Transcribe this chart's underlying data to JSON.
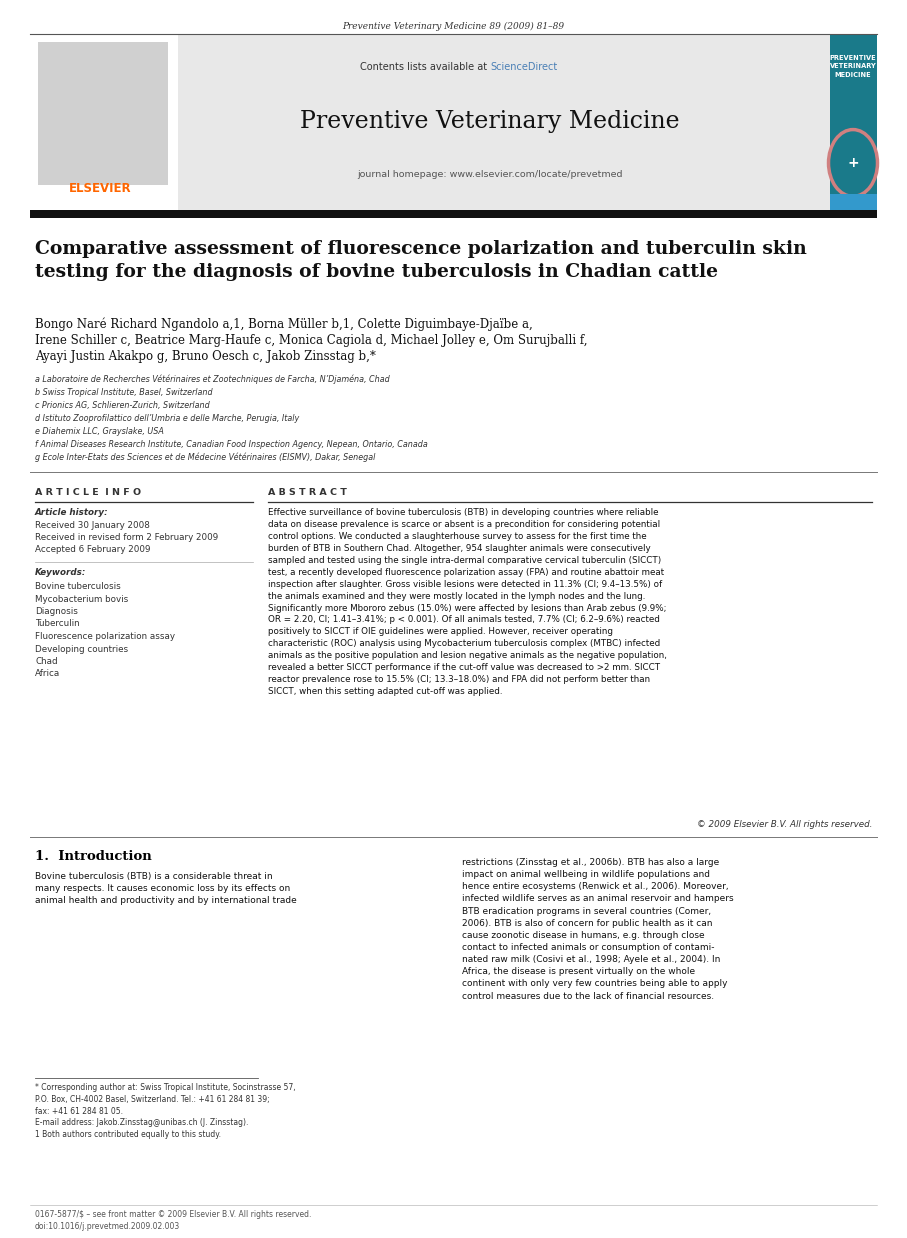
{
  "page_width": 9.07,
  "page_height": 12.38,
  "bg_color": "#ffffff",
  "journal_header_text": "Preventive Veterinary Medicine 89 (2009) 81–89",
  "sciencedirect_link_color": "#4a7fb5",
  "journal_name": "Preventive Veterinary Medicine",
  "journal_homepage": "journal homepage: www.elsevier.com/locate/prevetmed",
  "elsevier_color": "#ff6600",
  "header_bg_color": "#e8e8e8",
  "article_title": "Comparative assessment of fluorescence polarization and tuberculin skin\ntesting for the diagnosis of bovine tuberculosis in Chadian cattle",
  "authors_line1": "Bongo Naré Richard Ngandolo a,1, Borna Müller b,1, Colette Diguimbaye-Djaïbe a,",
  "authors_line2": "Irene Schiller c, Beatrice Marg-Haufe c, Monica Cagiola d, Michael Jolley e, Om Surujballi f,",
  "authors_line3": "Ayayi Justin Akakpo g, Bruno Oesch c, Jakob Zinsstag b,*",
  "affils": [
    "a Laboratoire de Recherches Vétérinaires et Zootechniques de Farcha, N’Djaména, Chad",
    "b Swiss Tropical Institute, Basel, Switzerland",
    "c Prionics AG, Schlieren-Zurich, Switzerland",
    "d Istituto Zooprofilattico dell’Umbria e delle Marche, Perugia, Italy",
    "e Diahemix LLC, Grayslake, USA",
    "f Animal Diseases Research Institute, Canadian Food Inspection Agency, Nepean, Ontario, Canada",
    "g Ecole Inter-Etats des Sciences et de Médecine Vétérinaires (EISMV), Dakar, Senegal"
  ],
  "article_info_title": "A R T I C L E  I N F O",
  "article_history_label": "Article history:",
  "received1": "Received 30 January 2008",
  "received2": "Received in revised form 2 February 2009",
  "accepted": "Accepted 6 February 2009",
  "keywords_label": "Keywords:",
  "keywords": [
    "Bovine tuberculosis",
    "Mycobacterium bovis",
    "Diagnosis",
    "Tuberculin",
    "Fluorescence polarization assay",
    "Developing countries",
    "Chad",
    "Africa"
  ],
  "abstract_title": "A B S T R A C T",
  "abstract_text": "Effective surveillance of bovine tuberculosis (BTB) in developing countries where reliable\ndata on disease prevalence is scarce or absent is a precondition for considering potential\ncontrol options. We conducted a slaughterhouse survey to assess for the first time the\nburden of BTB in Southern Chad. Altogether, 954 slaughter animals were consecutively\nsampled and tested using the single intra-dermal comparative cervical tuberculin (SICCT)\ntest, a recently developed fluorescence polarization assay (FPA) and routine abattoir meat\ninspection after slaughter. Gross visible lesions were detected in 11.3% (CI; 9.4–13.5%) of\nthe animals examined and they were mostly located in the lymph nodes and the lung.\nSignificantly more Mbororo zebus (15.0%) were affected by lesions than Arab zebus (9.9%;\nOR = 2.20, CI; 1.41–3.41%; p < 0.001). Of all animals tested, 7.7% (CI; 6.2–9.6%) reacted\npositively to SICCT if OIE guidelines were applied. However, receiver operating\ncharacteristic (ROC) analysis using Mycobacterium tuberculosis complex (MTBC) infected\nanimals as the positive population and lesion negative animals as the negative population,\nrevealed a better SICCT performance if the cut-off value was decreased to >2 mm. SICCT\nreactor prevalence rose to 15.5% (CI; 13.3–18.0%) and FPA did not perform better than\nSICCT, when this setting adapted cut-off was applied.",
  "abstract_footer": "© 2009 Elsevier B.V. All rights reserved.",
  "intro_title": "1.  Introduction",
  "intro_text_left": "Bovine tuberculosis (BTB) is a considerable threat in\nmany respects. It causes economic loss by its effects on\nanimal health and productivity and by international trade",
  "intro_text_right": "restrictions (Zinsstag et al., 2006b). BTB has also a large\nimpact on animal wellbeing in wildlife populations and\nhence entire ecosystems (Renwick et al., 2006). Moreover,\ninfected wildlife serves as an animal reservoir and hampers\nBTB eradication programs in several countries (Comer,\n2006). BTB is also of concern for public health as it can\ncause zoonotic disease in humans, e.g. through close\ncontact to infected animals or consumption of contami-\nnated raw milk (Cosivi et al., 1998; Ayele et al., 2004). In\nAfrica, the disease is present virtually on the whole\ncontinent with only very few countries being able to apply\ncontrol measures due to the lack of financial resources.",
  "footnote_text": "* Corresponding author at: Swiss Tropical Institute, Socinstrasse 57,\nP.O. Box, CH-4002 Basel, Switzerland. Tel.: +41 61 284 81 39;\nfax: +41 61 284 81 05.\nE-mail address: Jakob.Zinsstag@unibas.ch (J. Zinsstag).\n1 Both authors contributed equally to this study.",
  "footer_text": "0167-5877/$ – see front matter © 2009 Elsevier B.V. All rights reserved.\ndoi:10.1016/j.prevetmed.2009.02.003",
  "teal_box_color": "#1a7a8a",
  "teal_box_label": "PREVENTIVE\nVETERINARY\nMEDICINE",
  "link_blue": "#4a7fb5"
}
